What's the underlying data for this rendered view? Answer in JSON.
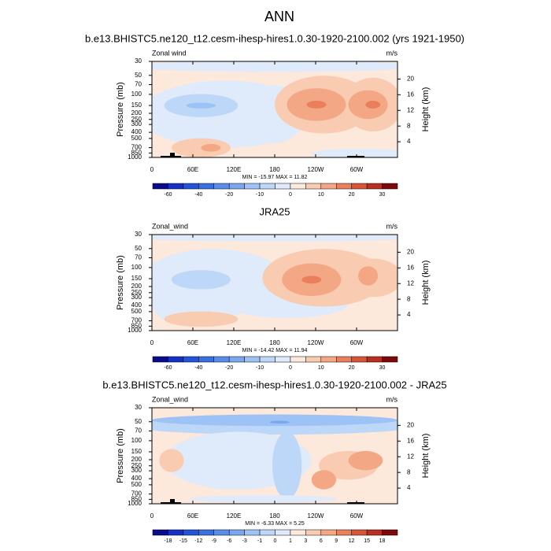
{
  "figure_title": "ANN",
  "chart_data": [
    {
      "type": "contour",
      "title": "b.e13.BHISTC5.ne120_t12.cesm-ihesp-hires1.0.30-1920-2100.002 (yrs 1921-1950)",
      "left_label": "Zonal wind",
      "right_label": "m/s",
      "ylabel": "Pressure (mb)",
      "y2label": "Height (km)",
      "xlim": [
        0,
        360
      ],
      "xticks": [
        0,
        {
          "value": 60,
          "label": "60E"
        },
        {
          "value": 120,
          "label": "120E"
        },
        180,
        {
          "value": 240,
          "label": "120W"
        },
        {
          "value": 300,
          "label": "60W"
        }
      ],
      "ylim": [
        1000,
        30
      ],
      "log_y": true,
      "yticks": [
        30,
        50,
        70,
        100,
        150,
        200,
        250,
        300,
        400,
        500,
        700,
        850,
        1000
      ],
      "y2lim": [
        0,
        24.5
      ],
      "y2ticks": [
        4,
        8,
        12,
        16,
        20
      ],
      "stats": "MIN = -15.97  MAX =  11.82",
      "colors": [
        "#0b0c8a",
        "#1530c4",
        "#2452d8",
        "#3a6fe0",
        "#5a8ce8",
        "#7ba7ef",
        "#9dc2f5",
        "#bcd7f8",
        "#dfeafb",
        "#fde8dc",
        "#f9cbb0",
        "#f3a784",
        "#ea7f5c",
        "#d9553a",
        "#b8301f",
        "#7c0a0a"
      ],
      "colorbar_levels": [
        -60,
        -50,
        -40,
        -30,
        -20,
        -15,
        -10,
        -5,
        0,
        5,
        10,
        15,
        20,
        25,
        30
      ],
      "colorbar_ticks": [
        -60,
        -40,
        -20,
        -10,
        0,
        10,
        20,
        30
      ]
    },
    {
      "type": "contour",
      "title": "JRA25",
      "left_label": "Zonal_wind",
      "right_label": "m/s",
      "ylabel": "Pressure (mb)",
      "y2label": "Height (km)",
      "xlim": [
        0,
        360
      ],
      "xticks": [
        0,
        {
          "value": 60,
          "label": "60E"
        },
        {
          "value": 120,
          "label": "120E"
        },
        180,
        {
          "value": 240,
          "label": "120W"
        },
        {
          "value": 300,
          "label": "60W"
        }
      ],
      "ylim": [
        1000,
        30
      ],
      "log_y": true,
      "yticks": [
        30,
        50,
        70,
        100,
        150,
        200,
        250,
        300,
        400,
        500,
        700,
        850,
        1000
      ],
      "y2lim": [
        0,
        24.5
      ],
      "y2ticks": [
        4,
        8,
        12,
        16,
        20
      ],
      "stats": "MIN = -14.42  MAX =  11.94",
      "colors": [
        "#0b0c8a",
        "#1530c4",
        "#2452d8",
        "#3a6fe0",
        "#5a8ce8",
        "#7ba7ef",
        "#9dc2f5",
        "#bcd7f8",
        "#dfeafb",
        "#fde8dc",
        "#f9cbb0",
        "#f3a784",
        "#ea7f5c",
        "#d9553a",
        "#b8301f",
        "#7c0a0a"
      ],
      "colorbar_levels": [
        -60,
        -50,
        -40,
        -30,
        -20,
        -15,
        -10,
        -5,
        0,
        5,
        10,
        15,
        20,
        25,
        30
      ],
      "colorbar_ticks": [
        -60,
        -40,
        -20,
        -10,
        0,
        10,
        20,
        30
      ]
    },
    {
      "type": "contour",
      "title": "b.e13.BHISTC5.ne120_t12.cesm-ihesp-hires1.0.30-1920-2100.002 - JRA25",
      "left_label": "Zonal_wind",
      "right_label": "m/s",
      "ylabel": "Pressure (mb)",
      "y2label": "Height (km)",
      "xlim": [
        0,
        360
      ],
      "xticks": [
        0,
        {
          "value": 60,
          "label": "60E"
        },
        {
          "value": 120,
          "label": "120E"
        },
        180,
        {
          "value": 240,
          "label": "120W"
        },
        {
          "value": 300,
          "label": "60W"
        }
      ],
      "ylim": [
        1000,
        30
      ],
      "log_y": true,
      "yticks": [
        30,
        50,
        70,
        100,
        150,
        200,
        250,
        300,
        400,
        500,
        700,
        850,
        1000
      ],
      "y2lim": [
        0,
        24.5
      ],
      "y2ticks": [
        4,
        8,
        12,
        16,
        20
      ],
      "stats": "MIN = -6.33  MAX =  5.25",
      "colors": [
        "#0b0c8a",
        "#1530c4",
        "#2452d8",
        "#3a6fe0",
        "#5a8ce8",
        "#7ba7ef",
        "#9dc2f5",
        "#bcd7f8",
        "#dfeafb",
        "#fde8dc",
        "#f9cbb0",
        "#f3a784",
        "#ea7f5c",
        "#d9553a",
        "#b8301f",
        "#7c0a0a"
      ],
      "colorbar_levels": [
        -18,
        -15,
        -12,
        -9,
        -6,
        -3,
        -1,
        0,
        1,
        3,
        6,
        9,
        12,
        15,
        18
      ],
      "colorbar_ticks": [
        -18,
        -15,
        -12,
        -9,
        -6,
        -3,
        -1,
        0,
        1,
        3,
        6,
        9,
        12,
        15,
        18
      ]
    }
  ]
}
